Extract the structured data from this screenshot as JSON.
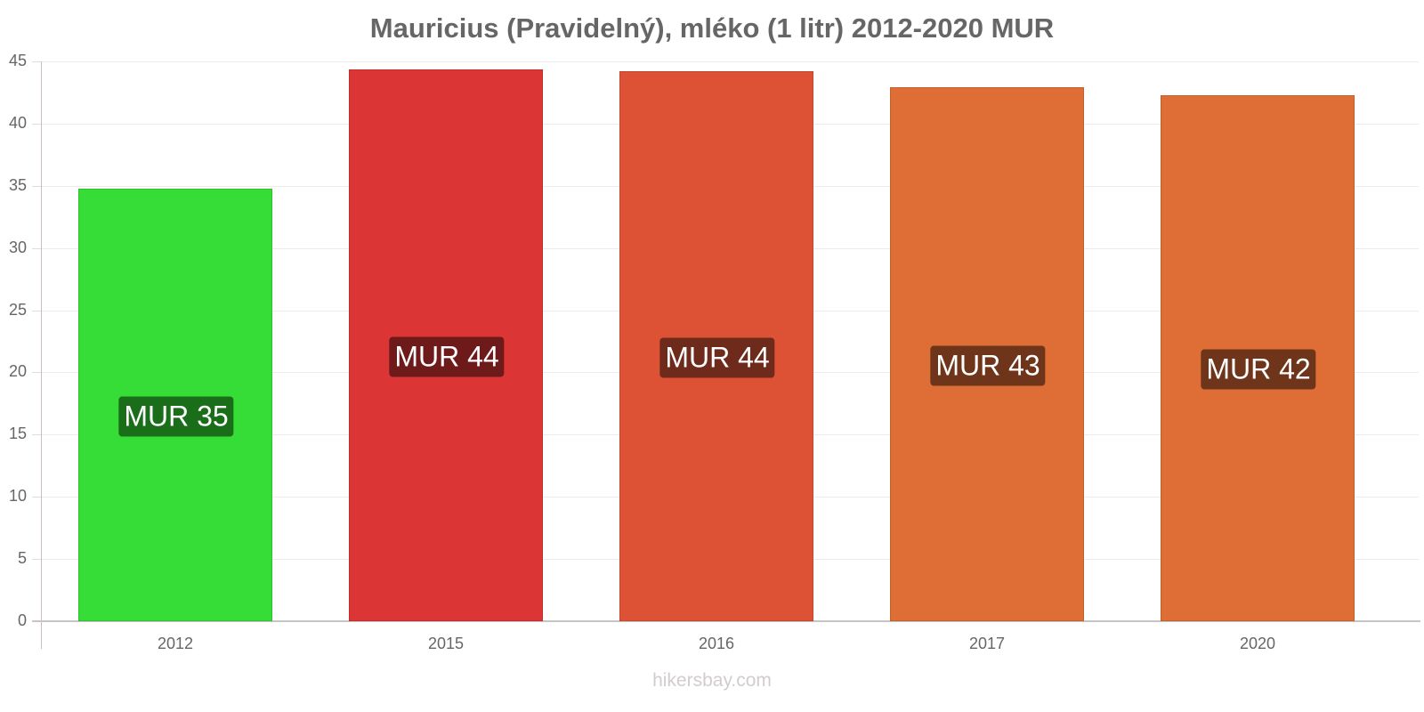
{
  "chart_data": {
    "type": "bar",
    "title": "Mauricius (Pravidelný), mléko (1 litr) 2012-2020 MUR",
    "xlabel": "",
    "ylabel": "",
    "categories": [
      "2012",
      "2015",
      "2016",
      "2017",
      "2020"
    ],
    "values": [
      34.8,
      44.35,
      44.2,
      42.9,
      42.3
    ],
    "data_labels": [
      "MUR 35",
      "MUR 44",
      "MUR 44",
      "MUR 43",
      "MUR 42"
    ],
    "bar_colors": [
      "#36dd36",
      "#dc3535",
      "#dd5135",
      "#de6e35",
      "#de6e35"
    ],
    "label_bg_colors": [
      "#1a6e1a",
      "#6e1a1a",
      "#6e2a1a",
      "#6e351a",
      "#6e351a"
    ],
    "ylim": [
      0,
      45
    ],
    "yticks": [
      0,
      5,
      10,
      15,
      20,
      25,
      30,
      35,
      40,
      45
    ],
    "grid": true,
    "legend": null
  },
  "watermark": "hikersbay.com"
}
